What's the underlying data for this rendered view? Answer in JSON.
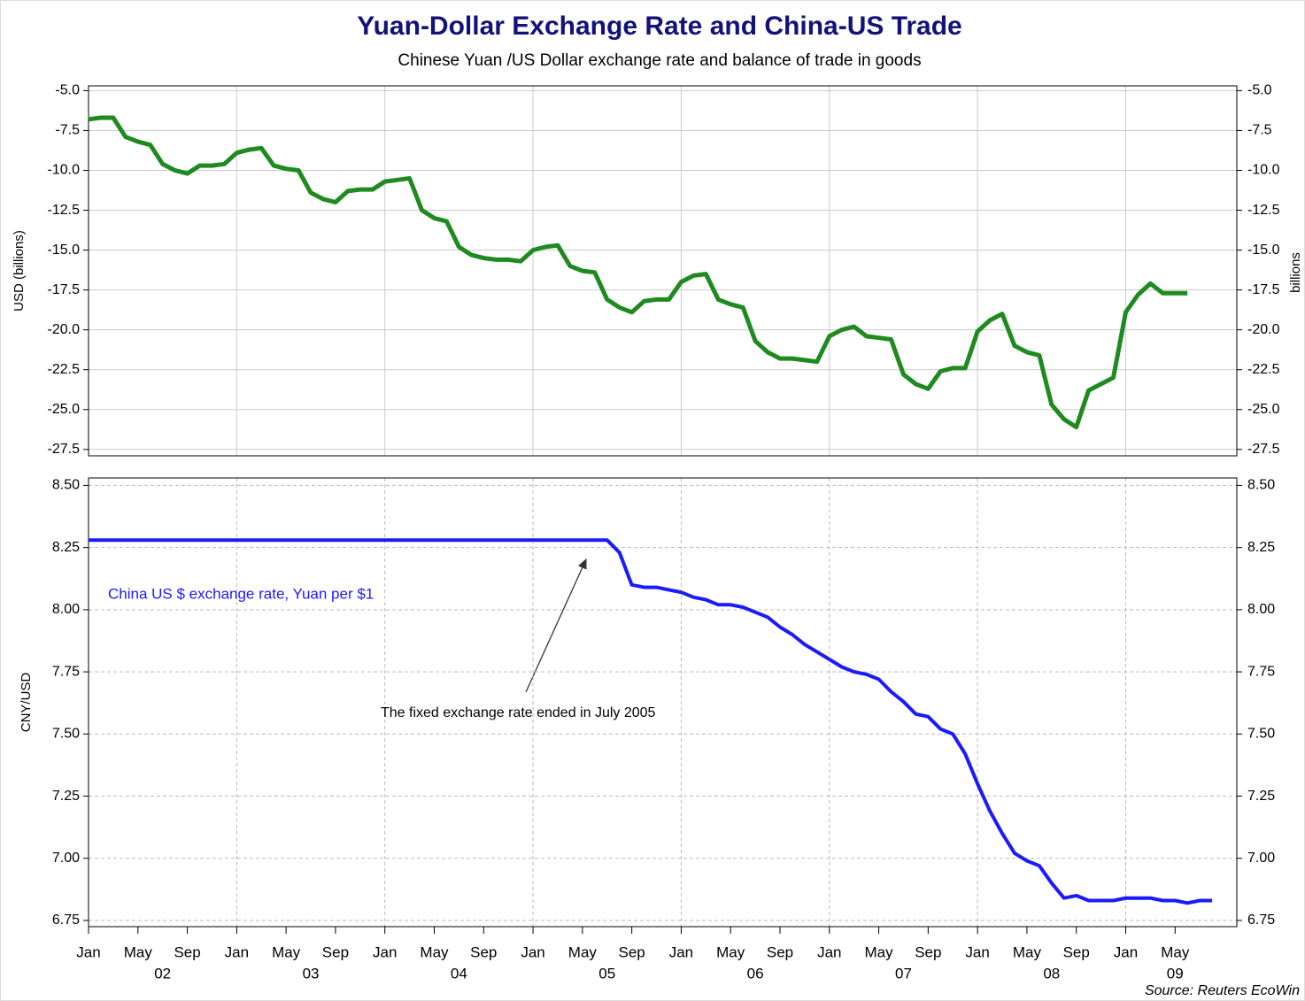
{
  "chart_data": [
    {
      "type": "line",
      "title": "Yuan-Dollar Exchange Rate and China-US Trade",
      "subtitle": "Chinese Yuan /US Dollar exchange rate and balance of trade in goods",
      "y_label": "USD (billions)",
      "y2_label": "billions",
      "xlim": [
        "2002-01",
        "2009-10"
      ],
      "ylim": [
        -27.9,
        -4.7
      ],
      "yticks": [
        {
          "value": -5,
          "label": "-5.0"
        },
        -7.5,
        {
          "value": -10,
          "label": "-10.0"
        },
        -12.5,
        {
          "value": -15,
          "label": "-15.0"
        },
        -17.5,
        {
          "value": -20,
          "label": "-20.0"
        },
        -22.5,
        {
          "value": -25,
          "label": "-25.0"
        },
        -27.5
      ],
      "xgrid": [
        "2003-01",
        "2004-01",
        "2005-01",
        "2006-01",
        "2007-01",
        "2008-01",
        "2009-01"
      ],
      "grid": "solid",
      "x": [
        "2002-01",
        "2002-02",
        "2002-03",
        "2002-04",
        "2002-05",
        "2002-06",
        "2002-07",
        "2002-08",
        "2002-09",
        "2002-10",
        "2002-11",
        "2002-12",
        "2003-01",
        "2003-02",
        "2003-03",
        "2003-04",
        "2003-05",
        "2003-06",
        "2003-07",
        "2003-08",
        "2003-09",
        "2003-10",
        "2003-11",
        "2003-12",
        "2004-01",
        "2004-02",
        "2004-03",
        "2004-04",
        "2004-05",
        "2004-06",
        "2004-07",
        "2004-08",
        "2004-09",
        "2004-10",
        "2004-11",
        "2004-12",
        "2005-01",
        "2005-02",
        "2005-03",
        "2005-04",
        "2005-05",
        "2005-06",
        "2005-07",
        "2005-08",
        "2005-09",
        "2005-10",
        "2005-11",
        "2005-12",
        "2006-01",
        "2006-02",
        "2006-03",
        "2006-04",
        "2006-05",
        "2006-06",
        "2006-07",
        "2006-08",
        "2006-09",
        "2006-10",
        "2006-11",
        "2006-12",
        "2007-01",
        "2007-02",
        "2007-03",
        "2007-04",
        "2007-05",
        "2007-06",
        "2007-07",
        "2007-08",
        "2007-09",
        "2007-10",
        "2007-11",
        "2007-12",
        "2008-01",
        "2008-02",
        "2008-03",
        "2008-04",
        "2008-05",
        "2008-06",
        "2008-07",
        "2008-08",
        "2008-09",
        "2008-10",
        "2008-11",
        "2008-12",
        "2009-01",
        "2009-02",
        "2009-03",
        "2009-04",
        "2009-05",
        "2009-06"
      ],
      "series": [
        {
          "color": "#1f8a1f",
          "values": [
            -6.8,
            -6.7,
            -6.7,
            -7.9,
            -8.2,
            -8.4,
            -9.6,
            -10.0,
            -10.2,
            -9.7,
            -9.7,
            -9.6,
            -8.9,
            -8.7,
            -8.6,
            -9.7,
            -9.9,
            -10.0,
            -11.4,
            -11.8,
            -12.0,
            -11.3,
            -11.2,
            -11.2,
            -10.7,
            -10.6,
            -10.5,
            -12.5,
            -13.0,
            -13.2,
            -14.8,
            -15.3,
            -15.5,
            -15.6,
            -15.6,
            -15.7,
            -15.0,
            -14.8,
            -14.7,
            -16.0,
            -16.3,
            -16.4,
            -18.1,
            -18.6,
            -18.9,
            -18.2,
            -18.1,
            -18.1,
            -17.0,
            -16.6,
            -16.5,
            -18.1,
            -18.4,
            -18.6,
            -20.7,
            -21.4,
            -21.8,
            -21.8,
            -21.9,
            -22.0,
            -20.4,
            -20.0,
            -19.8,
            -20.4,
            -20.5,
            -20.6,
            -22.8,
            -23.4,
            -23.7,
            -22.6,
            -22.4,
            -22.4,
            -20.1,
            -19.4,
            -19.0,
            -21.0,
            -21.4,
            -21.6,
            -24.7,
            -25.6,
            -26.1,
            -23.8,
            -23.4,
            -23.0,
            -18.9,
            -17.8,
            -17.1,
            -17.7,
            -17.7,
            -17.7
          ]
        }
      ]
    },
    {
      "type": "line",
      "y_label": "CNY/USD",
      "xlim": [
        "2002-01",
        "2009-10"
      ],
      "ylim": [
        6.725,
        8.53
      ],
      "yticks": [
        {
          "value": 8.5,
          "label": "8.50"
        },
        8.25,
        {
          "value": 8,
          "label": "8.00"
        },
        7.75,
        {
          "value": 7.5,
          "label": "7.50"
        },
        7.25,
        {
          "value": 7,
          "label": "7.00"
        },
        6.75
      ],
      "xgrid": [
        "2003-01",
        "2004-01",
        "2005-01",
        "2006-01",
        "2007-01",
        "2008-01",
        "2009-01"
      ],
      "grid": "dashed",
      "xticks": [
        {
          "value": "2002-01",
          "label": "Jan"
        },
        {
          "value": "2002-05",
          "label": "May"
        },
        {
          "value": "2002-09",
          "label": "Sep"
        },
        {
          "value": "2003-01",
          "label": "Jan"
        },
        {
          "value": "2003-05",
          "label": "May"
        },
        {
          "value": "2003-09",
          "label": "Sep"
        },
        {
          "value": "2004-01",
          "label": "Jan"
        },
        {
          "value": "2004-05",
          "label": "May"
        },
        {
          "value": "2004-09",
          "label": "Sep"
        },
        {
          "value": "2005-01",
          "label": "Jan"
        },
        {
          "value": "2005-05",
          "label": "May"
        },
        {
          "value": "2005-09",
          "label": "Sep"
        },
        {
          "value": "2006-01",
          "label": "Jan"
        },
        {
          "value": "2006-05",
          "label": "May"
        },
        {
          "value": "2006-09",
          "label": "Sep"
        },
        {
          "value": "2007-01",
          "label": "Jan"
        },
        {
          "value": "2007-05",
          "label": "May"
        },
        {
          "value": "2007-09",
          "label": "Sep"
        },
        {
          "value": "2008-01",
          "label": "Jan"
        },
        {
          "value": "2008-05",
          "label": "May"
        },
        {
          "value": "2008-09",
          "label": "Sep"
        },
        {
          "value": "2009-01",
          "label": "Jan"
        },
        {
          "value": "2009-05",
          "label": "May"
        }
      ],
      "year_labels": [
        {
          "value": "2002-07",
          "label": "02"
        },
        {
          "value": "2003-07",
          "label": "03"
        },
        {
          "value": "2004-07",
          "label": "04"
        },
        {
          "value": "2005-07",
          "label": "05"
        },
        {
          "value": "2006-07",
          "label": "06"
        },
        {
          "value": "2007-07",
          "label": "07"
        },
        {
          "value": "2008-07",
          "label": "08"
        },
        {
          "value": "2009-05",
          "label": "09"
        }
      ],
      "annotation": "The fixed exchange rate ended in July 2005",
      "source": "Source: Reuters EcoWin",
      "x": [
        "2002-01",
        "2002-02",
        "2002-03",
        "2002-04",
        "2002-05",
        "2002-06",
        "2002-07",
        "2002-08",
        "2002-09",
        "2002-10",
        "2002-11",
        "2002-12",
        "2003-01",
        "2003-02",
        "2003-03",
        "2003-04",
        "2003-05",
        "2003-06",
        "2003-07",
        "2003-08",
        "2003-09",
        "2003-10",
        "2003-11",
        "2003-12",
        "2004-01",
        "2004-02",
        "2004-03",
        "2004-04",
        "2004-05",
        "2004-06",
        "2004-07",
        "2004-08",
        "2004-09",
        "2004-10",
        "2004-11",
        "2004-12",
        "2005-01",
        "2005-02",
        "2005-03",
        "2005-04",
        "2005-05",
        "2005-06",
        "2005-07",
        "2005-08",
        "2005-09",
        "2005-10",
        "2005-11",
        "2005-12",
        "2006-01",
        "2006-02",
        "2006-03",
        "2006-04",
        "2006-05",
        "2006-06",
        "2006-07",
        "2006-08",
        "2006-09",
        "2006-10",
        "2006-11",
        "2006-12",
        "2007-01",
        "2007-02",
        "2007-03",
        "2007-04",
        "2007-05",
        "2007-06",
        "2007-07",
        "2007-08",
        "2007-09",
        "2007-10",
        "2007-11",
        "2007-12",
        "2008-01",
        "2008-02",
        "2008-03",
        "2008-04",
        "2008-05",
        "2008-06",
        "2008-07",
        "2008-08",
        "2008-09",
        "2008-10",
        "2008-11",
        "2008-12",
        "2009-01",
        "2009-02",
        "2009-03",
        "2009-04",
        "2009-05",
        "2009-06",
        "2009-07",
        "2009-08"
      ],
      "series": [
        {
          "name": "China US $ exchange rate, Yuan per $1",
          "color": "#1a1aff",
          "values": [
            8.28,
            8.28,
            8.28,
            8.28,
            8.28,
            8.28,
            8.28,
            8.28,
            8.28,
            8.28,
            8.28,
            8.28,
            8.28,
            8.28,
            8.28,
            8.28,
            8.28,
            8.28,
            8.28,
            8.28,
            8.28,
            8.28,
            8.28,
            8.28,
            8.28,
            8.28,
            8.28,
            8.28,
            8.28,
            8.28,
            8.28,
            8.28,
            8.28,
            8.28,
            8.28,
            8.28,
            8.28,
            8.28,
            8.28,
            8.28,
            8.28,
            8.28,
            8.28,
            8.23,
            8.1,
            8.09,
            8.09,
            8.08,
            8.07,
            8.05,
            8.04,
            8.02,
            8.02,
            8.01,
            7.99,
            7.97,
            7.93,
            7.9,
            7.86,
            7.83,
            7.8,
            7.77,
            7.75,
            7.74,
            7.72,
            7.67,
            7.63,
            7.58,
            7.57,
            7.52,
            7.5,
            7.42,
            7.3,
            7.19,
            7.1,
            7.02,
            6.99,
            6.97,
            6.9,
            6.84,
            6.85,
            6.83,
            6.83,
            6.83,
            6.84,
            6.84,
            6.84,
            6.83,
            6.83,
            6.82,
            6.83,
            6.83
          ]
        }
      ]
    }
  ]
}
